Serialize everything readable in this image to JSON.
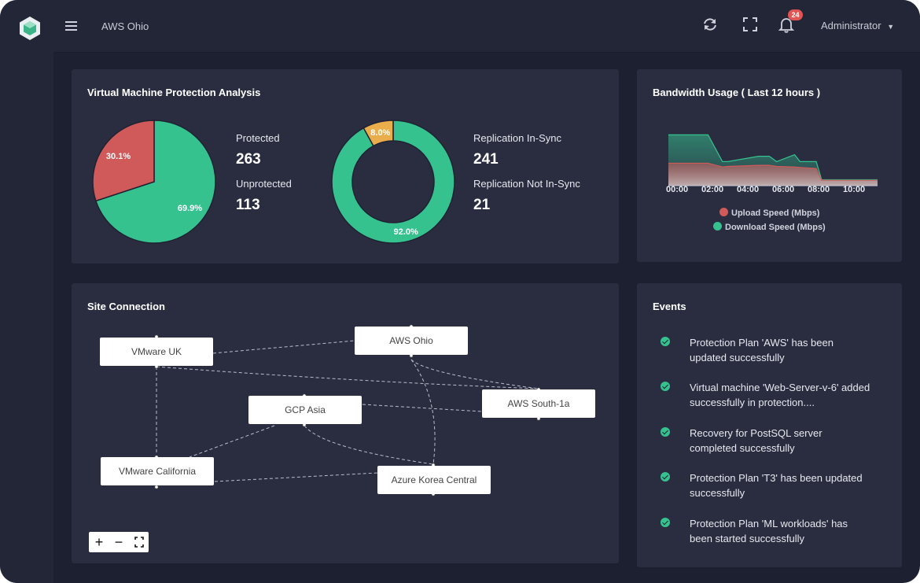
{
  "app": {
    "title": "AWS Ohio",
    "user": "Administrator",
    "notification_count": "24"
  },
  "colors": {
    "green": "#35c28f",
    "red": "#d05a5a",
    "amber": "#e9ad4c",
    "card": "#2a2d40",
    "bg": "#1d2030"
  },
  "icons": {
    "menu": "hamburger-icon",
    "refresh": "refresh-icon",
    "fullscreen": "fullscreen-icon",
    "bell": "bell-icon",
    "chevron": "chevron-down-icon"
  },
  "vm_protection": {
    "title": "Virtual Machine Protection Analysis",
    "protected_label": "Protected",
    "protected_value": "263",
    "unprotected_label": "Unprotected",
    "unprotected_value": "113",
    "insync_label": "Replication In-Sync",
    "insync_value": "241",
    "notinsync_label": "Replication Not In-Sync",
    "notinsync_value": "21"
  },
  "bandwidth": {
    "title": "Bandwidth Usage ( Last 12 hours )"
  },
  "chart_data": [
    {
      "type": "pie",
      "labels": [
        "Protected",
        "Unprotected"
      ],
      "values": [
        263,
        113
      ],
      "data_labels": [
        "69.9%",
        "30.1%"
      ],
      "colors": [
        "#35c28f",
        "#d05a5a"
      ]
    },
    {
      "type": "pie",
      "style": "donut",
      "labels": [
        "Replication In-Sync",
        "Replication Not In-Sync"
      ],
      "values": [
        241,
        21
      ],
      "data_labels": [
        "92.0%",
        "8.0%"
      ],
      "colors": [
        "#35c28f",
        "#e9ad4c"
      ]
    },
    {
      "type": "area",
      "x_ticks": [
        "00:00",
        "02:00",
        "04:00",
        "06:00",
        "08:00",
        "10:00"
      ],
      "x": [
        0,
        1,
        2,
        2.2,
        3,
        3.3,
        5,
        5.2,
        5.6,
        6,
        7,
        7.3,
        8.2,
        8.5,
        9,
        11.6
      ],
      "xlim": [
        0,
        11.6
      ],
      "ylim": [
        0,
        100
      ],
      "grid": false,
      "legend_position": "bottom",
      "series": [
        {
          "name": "Upload Speed (Mbps)",
          "color": "#d05a5a",
          "values": [
            42,
            42,
            42,
            42,
            35,
            36,
            38,
            38,
            38,
            36,
            35,
            34,
            32,
            10,
            10,
            10
          ]
        },
        {
          "name": "Download Speed (Mbps)",
          "color": "#35c28f",
          "values": [
            95,
            95,
            95,
            95,
            45,
            45,
            55,
            55,
            55,
            45,
            58,
            45,
            45,
            11,
            11,
            11
          ]
        }
      ]
    }
  ],
  "site_connection": {
    "title": "Site Connection",
    "nodes": [
      "VMware UK",
      "AWS Ohio",
      "GCP Asia",
      "AWS South-1a",
      "VMware California",
      "Azure Korea Central"
    ],
    "zoom_in": "+",
    "zoom_out": "−"
  },
  "events": {
    "title": "Events",
    "items": [
      "Protection Plan 'AWS' has been updated successfully",
      "Virtual machine 'Web-Server-v-6' added successfully in protection....",
      "Recovery for PostSQL server completed successfully",
      "Protection Plan 'T3' has been updated successfully",
      "Protection Plan 'ML workloads' has been started successfully"
    ]
  }
}
